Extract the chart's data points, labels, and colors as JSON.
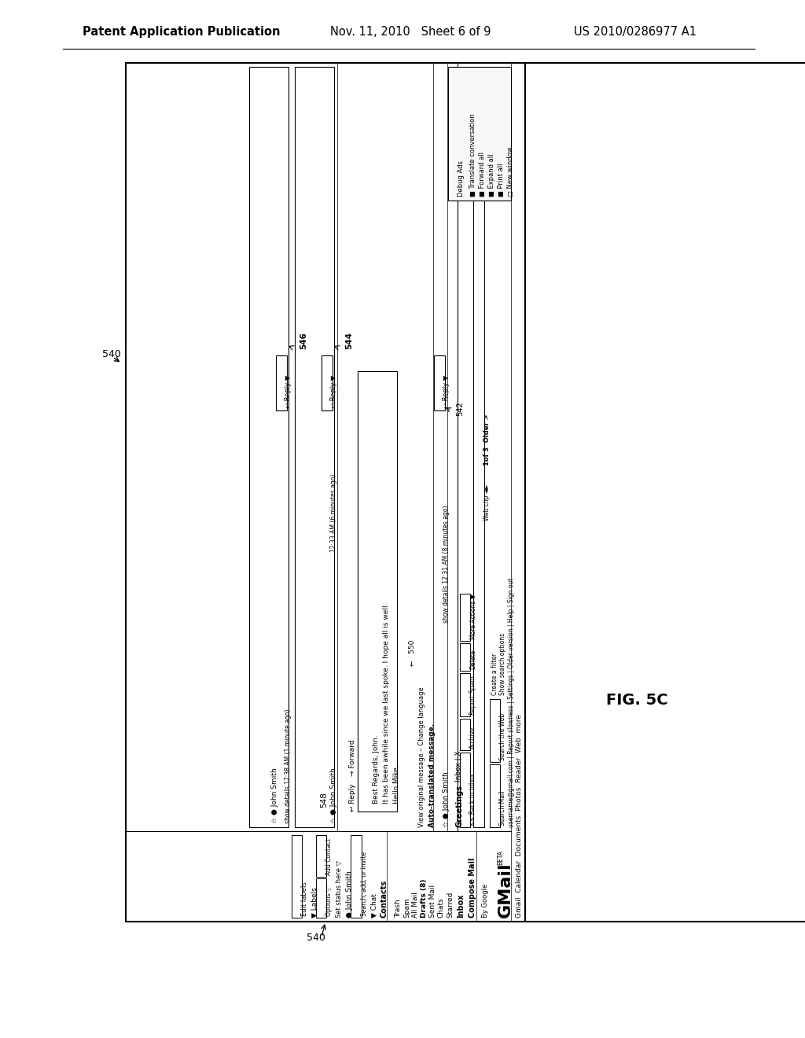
{
  "bg_color": "#ffffff",
  "header_left": "Patent Application Publication",
  "header_mid": "Nov. 11, 2010   Sheet 6 of 9",
  "header_right": "US 2010/0286977 A1",
  "fig_label": "FIG. 5C"
}
